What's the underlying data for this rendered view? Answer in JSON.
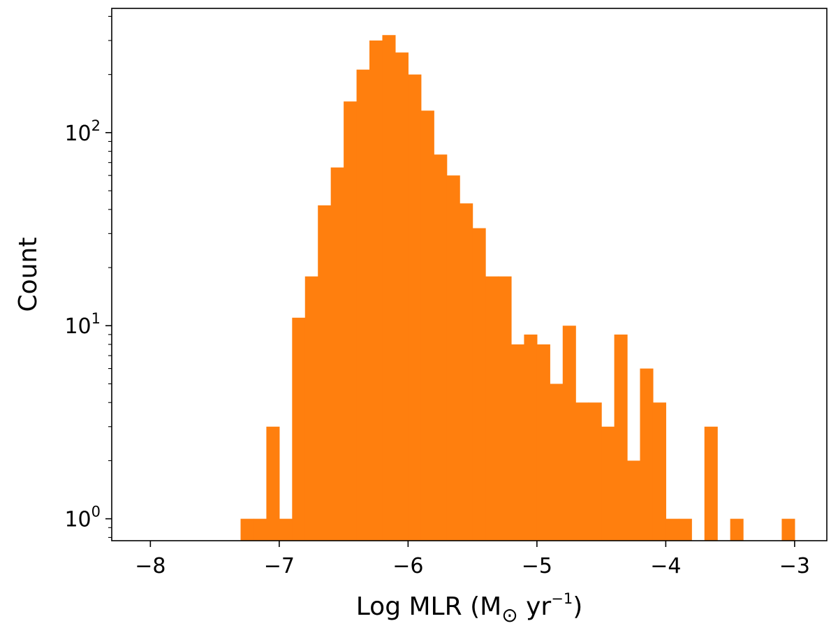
{
  "chart_data": {
    "type": "bar",
    "title": "",
    "xlabel": "Log MLR (M⊙ yr⁻¹)",
    "ylabel": "Count",
    "yscale": "log",
    "xlim": [
      -8.3,
      -2.75
    ],
    "ylim": [
      0.77,
      440
    ],
    "grid": false,
    "bar_color": "#ff7f0e",
    "bin_width": 0.1,
    "x_ticks": [
      -8,
      -7,
      -6,
      -5,
      -4,
      -3
    ],
    "x_tick_labels": [
      "−8",
      "−7",
      "−6",
      "−5",
      "−4",
      "−3"
    ],
    "y_ticks": [
      {
        "value": 1,
        "base": "10",
        "exp": "0"
      },
      {
        "value": 10,
        "base": "10",
        "exp": "1"
      },
      {
        "value": 100,
        "base": "10",
        "exp": "2"
      }
    ],
    "bins": [
      {
        "x": -7.3,
        "count": 1
      },
      {
        "x": -7.2,
        "count": 1
      },
      {
        "x": -7.1,
        "count": 3
      },
      {
        "x": -7.0,
        "count": 1
      },
      {
        "x": -6.9,
        "count": 11
      },
      {
        "x": -6.8,
        "count": 18
      },
      {
        "x": -6.7,
        "count": 42
      },
      {
        "x": -6.6,
        "count": 66
      },
      {
        "x": -6.5,
        "count": 145
      },
      {
        "x": -6.4,
        "count": 212
      },
      {
        "x": -6.3,
        "count": 300
      },
      {
        "x": -6.2,
        "count": 320
      },
      {
        "x": -6.1,
        "count": 260
      },
      {
        "x": -6.0,
        "count": 200
      },
      {
        "x": -5.9,
        "count": 130
      },
      {
        "x": -5.8,
        "count": 77
      },
      {
        "x": -5.7,
        "count": 60
      },
      {
        "x": -5.6,
        "count": 43
      },
      {
        "x": -5.5,
        "count": 32
      },
      {
        "x": -5.4,
        "count": 18
      },
      {
        "x": -5.3,
        "count": 18
      },
      {
        "x": -5.2,
        "count": 8
      },
      {
        "x": -5.1,
        "count": 9
      },
      {
        "x": -5.0,
        "count": 8
      },
      {
        "x": -4.9,
        "count": 5
      },
      {
        "x": -4.8,
        "count": 10
      },
      {
        "x": -4.7,
        "count": 4
      },
      {
        "x": -4.6,
        "count": 4
      },
      {
        "x": -4.5,
        "count": 3
      },
      {
        "x": -4.4,
        "count": 9
      },
      {
        "x": -4.3,
        "count": 2
      },
      {
        "x": -4.2,
        "count": 6
      },
      {
        "x": -4.1,
        "count": 4
      },
      {
        "x": -4.0,
        "count": 1
      },
      {
        "x": -3.9,
        "count": 1
      },
      {
        "x": -3.7,
        "count": 3
      },
      {
        "x": -3.5,
        "count": 1
      },
      {
        "x": -3.1,
        "count": 1
      }
    ]
  }
}
